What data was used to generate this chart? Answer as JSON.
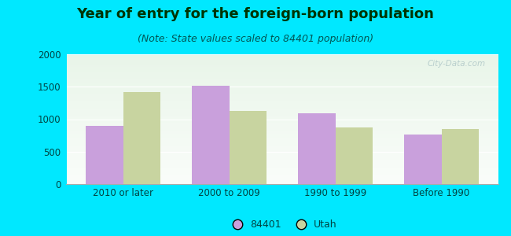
{
  "title": "Year of entry for the foreign-born population",
  "subtitle": "(Note: State values scaled to 84401 population)",
  "categories": [
    "2010 or later",
    "2000 to 2009",
    "1990 to 1999",
    "Before 1990"
  ],
  "values_84401": [
    900,
    1510,
    1090,
    765
  ],
  "values_utah": [
    1420,
    1130,
    870,
    850
  ],
  "bar_color_84401": "#c9a0dc",
  "bar_color_utah": "#c8d4a0",
  "background_outer": "#00e8ff",
  "ylim": [
    0,
    2000
  ],
  "yticks": [
    0,
    500,
    1000,
    1500,
    2000
  ],
  "bar_width": 0.35,
  "legend_labels": [
    "84401",
    "Utah"
  ],
  "title_fontsize": 13,
  "subtitle_fontsize": 9,
  "tick_fontsize": 8.5,
  "legend_fontsize": 9,
  "title_color": "#003300",
  "subtitle_color": "#005555",
  "tick_color": "#004444"
}
